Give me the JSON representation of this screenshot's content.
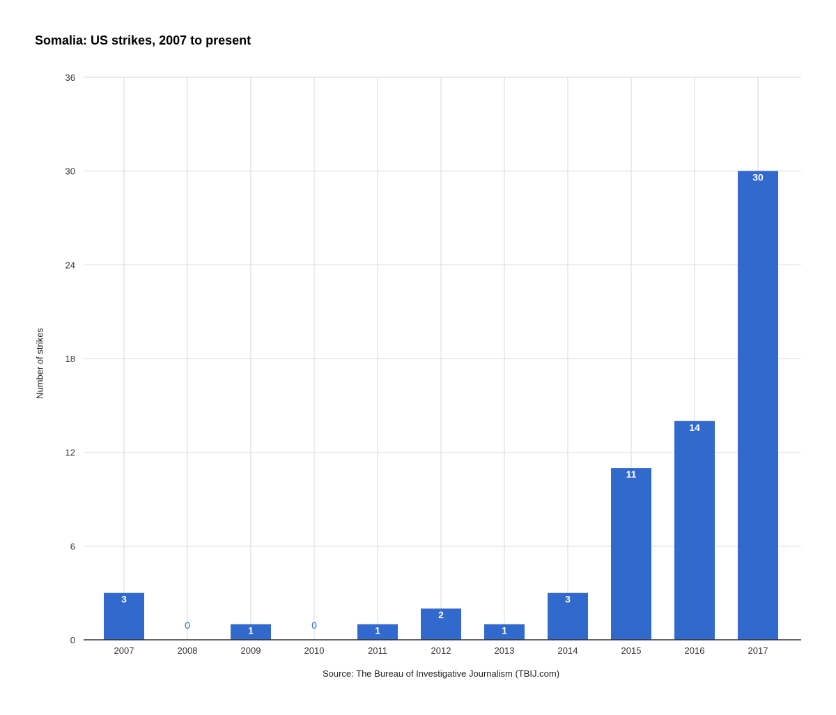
{
  "colors": {
    "bar": "#3169cd",
    "grid": "#d9d9d9",
    "axis": "#333333",
    "zero_label": "#3169cd"
  },
  "chart_data": {
    "type": "bar",
    "title": "Somalia: US strikes, 2007 to present",
    "xlabel": "Source: The Bureau of Investigative Journalism (TBIJ.com)",
    "ylabel": "Number of strikes",
    "categories": [
      "2007",
      "2008",
      "2009",
      "2010",
      "2011",
      "2012",
      "2013",
      "2014",
      "2015",
      "2016",
      "2017"
    ],
    "values": [
      3,
      0,
      1,
      0,
      1,
      2,
      1,
      3,
      11,
      14,
      30
    ],
    "ylim": [
      0,
      36
    ],
    "yticks": [
      0,
      6,
      12,
      18,
      24,
      30,
      36
    ],
    "grid": true,
    "data_labels": true
  }
}
